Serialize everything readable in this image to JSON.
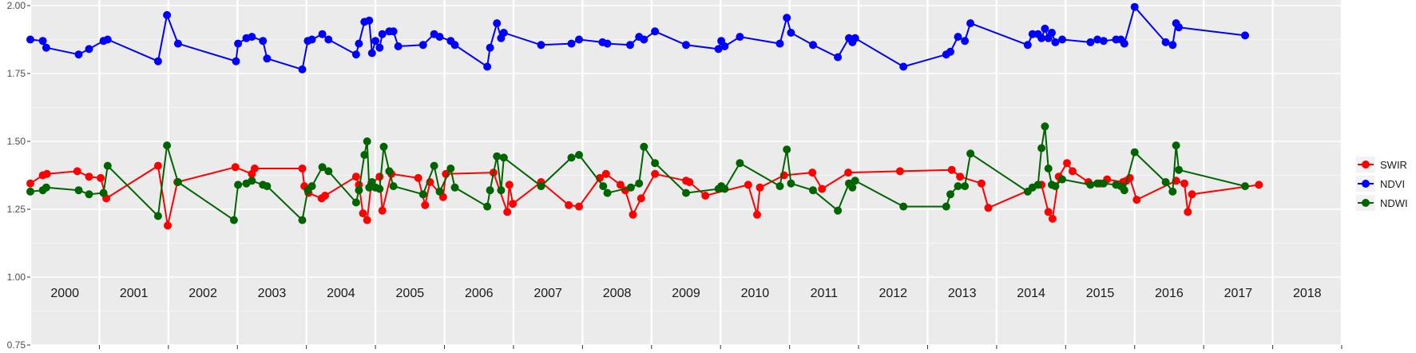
{
  "chart_data": {
    "type": "line",
    "title": "",
    "xlabel": "",
    "ylabel": "",
    "xlim": [
      2000.0,
      2019.0
    ],
    "ylim": [
      0.75,
      2.0
    ],
    "yticks": [
      0.75,
      1.0,
      1.25,
      1.5,
      1.75,
      2.0
    ],
    "ytick_labels": [
      "0.75",
      "1.00",
      "1.25",
      "1.50",
      "1.75",
      "2.00"
    ],
    "year_labels": [
      "2000",
      "2001",
      "2002",
      "2003",
      "2004",
      "2005",
      "2006",
      "2007",
      "2008",
      "2009",
      "2010",
      "2011",
      "2012",
      "2013",
      "2014",
      "2015",
      "2016",
      "2017",
      "2018"
    ],
    "grid": true,
    "legend_position": "right",
    "series": [
      {
        "name": "SWIR",
        "color": "#ff0000",
        "points": [
          [
            2000.0,
            1.345
          ],
          [
            2000.18,
            1.375
          ],
          [
            2000.24,
            1.38
          ],
          [
            2000.68,
            1.39
          ],
          [
            2000.85,
            1.37
          ],
          [
            2001.02,
            1.365
          ],
          [
            2001.1,
            1.29
          ],
          [
            2001.85,
            1.41
          ],
          [
            2001.99,
            1.19
          ],
          [
            2002.13,
            1.35
          ],
          [
            2002.97,
            1.405
          ],
          [
            2003.21,
            1.38
          ],
          [
            2003.25,
            1.4
          ],
          [
            2003.94,
            1.4
          ],
          [
            2003.97,
            1.335
          ],
          [
            2004.03,
            1.31
          ],
          [
            2004.22,
            1.29
          ],
          [
            2004.27,
            1.3
          ],
          [
            2004.72,
            1.37
          ],
          [
            2004.76,
            1.34
          ],
          [
            2004.82,
            1.235
          ],
          [
            2004.88,
            1.21
          ],
          [
            2004.94,
            1.345
          ],
          [
            2005.06,
            1.37
          ],
          [
            2005.1,
            1.245
          ],
          [
            2005.23,
            1.38
          ],
          [
            2005.62,
            1.365
          ],
          [
            2005.72,
            1.265
          ],
          [
            2005.79,
            1.35
          ],
          [
            2005.98,
            1.295
          ],
          [
            2006.02,
            1.38
          ],
          [
            2006.71,
            1.385
          ],
          [
            2006.91,
            1.24
          ],
          [
            2006.94,
            1.34
          ],
          [
            2006.99,
            1.27
          ],
          [
            2007.4,
            1.35
          ],
          [
            2007.8,
            1.265
          ],
          [
            2007.95,
            1.26
          ],
          [
            2008.25,
            1.365
          ],
          [
            2008.34,
            1.38
          ],
          [
            2008.55,
            1.34
          ],
          [
            2008.62,
            1.32
          ],
          [
            2008.73,
            1.23
          ],
          [
            2008.85,
            1.29
          ],
          [
            2009.05,
            1.38
          ],
          [
            2009.5,
            1.355
          ],
          [
            2009.55,
            1.35
          ],
          [
            2009.78,
            1.3
          ],
          [
            2010.4,
            1.34
          ],
          [
            2010.53,
            1.23
          ],
          [
            2010.57,
            1.33
          ],
          [
            2010.92,
            1.375
          ],
          [
            2011.33,
            1.385
          ],
          [
            2011.47,
            1.325
          ],
          [
            2011.85,
            1.385
          ],
          [
            2012.6,
            1.39
          ],
          [
            2013.35,
            1.395
          ],
          [
            2013.47,
            1.37
          ],
          [
            2013.78,
            1.345
          ],
          [
            2013.88,
            1.255
          ],
          [
            2014.65,
            1.34
          ],
          [
            2014.75,
            1.24
          ],
          [
            2014.81,
            1.215
          ],
          [
            2014.9,
            1.37
          ],
          [
            2015.02,
            1.42
          ],
          [
            2015.1,
            1.39
          ],
          [
            2015.33,
            1.35
          ],
          [
            2015.5,
            1.345
          ],
          [
            2015.6,
            1.36
          ],
          [
            2015.83,
            1.35
          ],
          [
            2015.88,
            1.355
          ],
          [
            2015.93,
            1.365
          ],
          [
            2016.03,
            1.285
          ],
          [
            2016.6,
            1.355
          ],
          [
            2016.72,
            1.345
          ],
          [
            2016.77,
            1.24
          ],
          [
            2016.83,
            1.305
          ],
          [
            2017.8,
            1.34
          ]
        ]
      },
      {
        "name": "NDVI",
        "color": "#0000ff",
        "points": [
          [
            2000.0,
            1.875
          ],
          [
            2000.18,
            1.87
          ],
          [
            2000.23,
            1.845
          ],
          [
            2000.7,
            1.82
          ],
          [
            2000.85,
            1.84
          ],
          [
            2001.06,
            1.87
          ],
          [
            2001.12,
            1.875
          ],
          [
            2001.85,
            1.795
          ],
          [
            2001.98,
            1.965
          ],
          [
            2002.14,
            1.86
          ],
          [
            2002.98,
            1.795
          ],
          [
            2003.01,
            1.86
          ],
          [
            2003.13,
            1.88
          ],
          [
            2003.21,
            1.885
          ],
          [
            2003.37,
            1.87
          ],
          [
            2003.43,
            1.805
          ],
          [
            2003.94,
            1.765
          ],
          [
            2004.02,
            1.87
          ],
          [
            2004.08,
            1.875
          ],
          [
            2004.23,
            1.895
          ],
          [
            2004.32,
            1.875
          ],
          [
            2004.72,
            1.82
          ],
          [
            2004.76,
            1.86
          ],
          [
            2004.84,
            1.94
          ],
          [
            2004.91,
            1.945
          ],
          [
            2004.95,
            1.825
          ],
          [
            2005.0,
            1.87
          ],
          [
            2005.06,
            1.845
          ],
          [
            2005.1,
            1.895
          ],
          [
            2005.2,
            1.905
          ],
          [
            2005.26,
            1.905
          ],
          [
            2005.33,
            1.85
          ],
          [
            2005.69,
            1.855
          ],
          [
            2005.85,
            1.895
          ],
          [
            2005.93,
            1.885
          ],
          [
            2006.09,
            1.87
          ],
          [
            2006.15,
            1.855
          ],
          [
            2006.62,
            1.775
          ],
          [
            2006.66,
            1.845
          ],
          [
            2006.76,
            1.935
          ],
          [
            2006.82,
            1.88
          ],
          [
            2006.86,
            1.9
          ],
          [
            2007.4,
            1.855
          ],
          [
            2007.84,
            1.86
          ],
          [
            2007.95,
            1.875
          ],
          [
            2008.29,
            1.865
          ],
          [
            2008.36,
            1.86
          ],
          [
            2008.69,
            1.855
          ],
          [
            2008.82,
            1.885
          ],
          [
            2008.89,
            1.875
          ],
          [
            2009.05,
            1.905
          ],
          [
            2009.5,
            1.855
          ],
          [
            2009.97,
            1.84
          ],
          [
            2010.01,
            1.87
          ],
          [
            2010.06,
            1.85
          ],
          [
            2010.28,
            1.885
          ],
          [
            2010.86,
            1.86
          ],
          [
            2010.96,
            1.955
          ],
          [
            2011.02,
            1.9
          ],
          [
            2011.34,
            1.855
          ],
          [
            2011.7,
            1.81
          ],
          [
            2011.86,
            1.88
          ],
          [
            2011.91,
            1.865
          ],
          [
            2011.95,
            1.88
          ],
          [
            2012.65,
            1.775
          ],
          [
            2013.27,
            1.82
          ],
          [
            2013.33,
            1.83
          ],
          [
            2013.44,
            1.885
          ],
          [
            2013.54,
            1.87
          ],
          [
            2013.62,
            1.935
          ],
          [
            2014.45,
            1.855
          ],
          [
            2014.52,
            1.895
          ],
          [
            2014.6,
            1.895
          ],
          [
            2014.65,
            1.88
          ],
          [
            2014.7,
            1.915
          ],
          [
            2014.75,
            1.88
          ],
          [
            2014.8,
            1.9
          ],
          [
            2014.85,
            1.865
          ],
          [
            2014.95,
            1.875
          ],
          [
            2015.36,
            1.865
          ],
          [
            2015.46,
            1.875
          ],
          [
            2015.55,
            1.87
          ],
          [
            2015.73,
            1.875
          ],
          [
            2015.8,
            1.875
          ],
          [
            2015.85,
            1.86
          ],
          [
            2016.0,
            1.995
          ],
          [
            2016.45,
            1.865
          ],
          [
            2016.55,
            1.855
          ],
          [
            2016.6,
            1.935
          ],
          [
            2016.64,
            1.92
          ],
          [
            2017.6,
            1.89
          ]
        ]
      },
      {
        "name": "NDWI",
        "color": "#006400",
        "points": [
          [
            2000.0,
            1.315
          ],
          [
            2000.18,
            1.32
          ],
          [
            2000.23,
            1.33
          ],
          [
            2000.7,
            1.32
          ],
          [
            2000.85,
            1.305
          ],
          [
            2001.06,
            1.31
          ],
          [
            2001.12,
            1.41
          ],
          [
            2001.85,
            1.225
          ],
          [
            2001.98,
            1.485
          ],
          [
            2002.14,
            1.35
          ],
          [
            2002.95,
            1.21
          ],
          [
            2003.01,
            1.34
          ],
          [
            2003.13,
            1.345
          ],
          [
            2003.21,
            1.355
          ],
          [
            2003.37,
            1.34
          ],
          [
            2003.43,
            1.335
          ],
          [
            2003.94,
            1.21
          ],
          [
            2004.02,
            1.32
          ],
          [
            2004.08,
            1.335
          ],
          [
            2004.23,
            1.405
          ],
          [
            2004.32,
            1.39
          ],
          [
            2004.72,
            1.275
          ],
          [
            2004.76,
            1.32
          ],
          [
            2004.84,
            1.45
          ],
          [
            2004.88,
            1.5
          ],
          [
            2004.91,
            1.33
          ],
          [
            2004.95,
            1.35
          ],
          [
            2005.0,
            1.33
          ],
          [
            2005.06,
            1.325
          ],
          [
            2005.12,
            1.48
          ],
          [
            2005.2,
            1.39
          ],
          [
            2005.26,
            1.335
          ],
          [
            2005.69,
            1.305
          ],
          [
            2005.85,
            1.41
          ],
          [
            2005.93,
            1.315
          ],
          [
            2006.09,
            1.4
          ],
          [
            2006.15,
            1.33
          ],
          [
            2006.62,
            1.26
          ],
          [
            2006.66,
            1.32
          ],
          [
            2006.76,
            1.445
          ],
          [
            2006.82,
            1.32
          ],
          [
            2006.86,
            1.44
          ],
          [
            2007.4,
            1.335
          ],
          [
            2007.84,
            1.44
          ],
          [
            2007.95,
            1.45
          ],
          [
            2008.3,
            1.335
          ],
          [
            2008.36,
            1.31
          ],
          [
            2008.7,
            1.33
          ],
          [
            2008.82,
            1.345
          ],
          [
            2008.89,
            1.48
          ],
          [
            2009.05,
            1.42
          ],
          [
            2009.5,
            1.31
          ],
          [
            2009.97,
            1.325
          ],
          [
            2010.01,
            1.335
          ],
          [
            2010.06,
            1.325
          ],
          [
            2010.28,
            1.42
          ],
          [
            2010.86,
            1.335
          ],
          [
            2010.96,
            1.47
          ],
          [
            2011.02,
            1.345
          ],
          [
            2011.34,
            1.32
          ],
          [
            2011.7,
            1.245
          ],
          [
            2011.86,
            1.345
          ],
          [
            2011.91,
            1.33
          ],
          [
            2011.95,
            1.355
          ],
          [
            2012.65,
            1.26
          ],
          [
            2013.27,
            1.26
          ],
          [
            2013.33,
            1.305
          ],
          [
            2013.44,
            1.335
          ],
          [
            2013.54,
            1.335
          ],
          [
            2013.62,
            1.455
          ],
          [
            2014.45,
            1.315
          ],
          [
            2014.52,
            1.33
          ],
          [
            2014.6,
            1.34
          ],
          [
            2014.65,
            1.475
          ],
          [
            2014.7,
            1.555
          ],
          [
            2014.75,
            1.4
          ],
          [
            2014.8,
            1.34
          ],
          [
            2014.85,
            1.335
          ],
          [
            2014.95,
            1.36
          ],
          [
            2015.36,
            1.34
          ],
          [
            2015.46,
            1.345
          ],
          [
            2015.55,
            1.345
          ],
          [
            2015.73,
            1.34
          ],
          [
            2015.8,
            1.335
          ],
          [
            2015.85,
            1.32
          ],
          [
            2016.0,
            1.46
          ],
          [
            2016.45,
            1.35
          ],
          [
            2016.55,
            1.315
          ],
          [
            2016.6,
            1.485
          ],
          [
            2016.64,
            1.395
          ],
          [
            2017.6,
            1.335
          ]
        ]
      }
    ]
  }
}
